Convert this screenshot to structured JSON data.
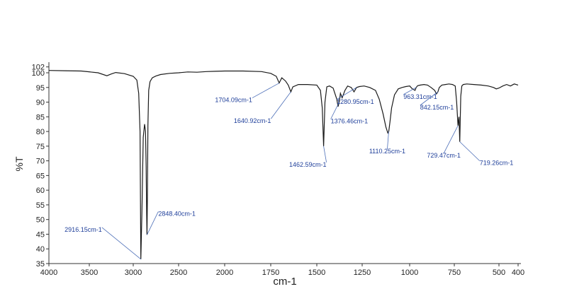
{
  "chart_data": {
    "type": "line",
    "title": "",
    "xlabel": "cm-1",
    "ylabel": "%T",
    "xlim": [
      4000,
      400
    ],
    "ylim": [
      35,
      102
    ],
    "x_ticks": [
      "4000",
      "3500",
      "3000",
      "2500",
      "2000",
      "1750",
      "1500",
      "1250",
      "1000",
      "750",
      "500",
      "400"
    ],
    "x_tick_values": [
      4000,
      3500,
      3000,
      2500,
      2000,
      1750,
      1500,
      1250,
      1000,
      750,
      500,
      400
    ],
    "y_ticks": [
      "35",
      "40",
      "45",
      "50",
      "55",
      "60",
      "65",
      "70",
      "75",
      "80",
      "85",
      "90",
      "95",
      "100",
      "102"
    ],
    "y_tick_values": [
      35,
      40,
      45,
      50,
      55,
      60,
      65,
      70,
      75,
      80,
      85,
      90,
      95,
      100,
      102
    ],
    "grid": false,
    "series": [
      {
        "x": [
          4000,
          3800,
          3600,
          3400,
          3300,
          3250,
          3200,
          3100,
          3000,
          2960,
          2940,
          2925,
          2916.15,
          2905,
          2890,
          2875,
          2865,
          2858,
          2852,
          2848.4,
          2844,
          2838,
          2830,
          2815,
          2790,
          2750,
          2700,
          2600,
          2500,
          2400,
          2300,
          2200,
          2100,
          2000,
          1900,
          1800,
          1750,
          1720,
          1704.09,
          1690,
          1670,
          1655,
          1640.92,
          1630,
          1600,
          1550,
          1500,
          1480,
          1470,
          1462.59,
          1455,
          1445,
          1430,
          1410,
          1390,
          1383,
          1376.46,
          1370,
          1360,
          1345,
          1330,
          1310,
          1295,
          1280.95,
          1265,
          1240,
          1210,
          1180,
          1160,
          1140,
          1125,
          1115,
          1110.25,
          1104,
          1095,
          1080,
          1060,
          1040,
          1020,
          1000,
          985,
          970,
          963.31,
          955,
          940,
          920,
          900,
          880,
          860,
          850,
          842.15,
          834,
          820,
          800,
          780,
          760,
          745,
          737,
          729.47,
          724,
          719.26,
          714,
          708,
          700,
          680,
          640,
          600,
          560,
          530,
          515,
          500,
          480,
          460,
          440,
          420,
          400
        ],
        "y": [
          100.8,
          100.7,
          100.6,
          100.0,
          99.0,
          99.6,
          100.1,
          99.7,
          98.8,
          97.5,
          93.0,
          80.0,
          36.5,
          52.0,
          78.0,
          82.5,
          80.0,
          68.0,
          52.0,
          44.8,
          58.0,
          82.0,
          94.0,
          97.0,
          98.3,
          98.9,
          99.4,
          99.8,
          100.0,
          100.3,
          100.2,
          100.4,
          100.5,
          100.6,
          100.6,
          100.4,
          99.8,
          98.8,
          96.5,
          98.3,
          97.2,
          95.8,
          93.5,
          95.2,
          96.0,
          96.0,
          95.8,
          94.0,
          88.0,
          75.0,
          90.0,
          95.2,
          95.5,
          94.8,
          91.0,
          88.5,
          90.0,
          93.0,
          91.5,
          94.0,
          95.5,
          95.0,
          93.5,
          95.0,
          95.3,
          95.5,
          95.0,
          94.0,
          91.0,
          86.0,
          81.5,
          79.5,
          80.0,
          83.0,
          88.0,
          92.5,
          94.5,
          95.0,
          95.3,
          95.5,
          94.5,
          94.0,
          95.0,
          95.6,
          95.8,
          96.0,
          95.8,
          95.0,
          94.0,
          92.8,
          93.5,
          95.0,
          95.8,
          96.0,
          96.2,
          96.0,
          95.5,
          90.0,
          82.0,
          85.0,
          76.5,
          92.0,
          95.5,
          96.0,
          96.2,
          96.0,
          95.8,
          95.5,
          95.0,
          94.5,
          94.8,
          95.5,
          96.0,
          95.5,
          96.2,
          95.8
        ]
      }
    ],
    "annotations": [
      {
        "text": "2916.15cm-1",
        "x": 2916.15,
        "y": 36.5
      },
      {
        "text": "2848.40cm-1",
        "x": 2848.4,
        "y": 44.8
      },
      {
        "text": "1704.09cm-1",
        "x": 1704.09,
        "y": 96.5
      },
      {
        "text": "1640.92cm-1",
        "x": 1640.92,
        "y": 93.5
      },
      {
        "text": "1462.59cm-1",
        "x": 1462.59,
        "y": 75.0
      },
      {
        "text": "1376.46cm-1",
        "x": 1376.46,
        "y": 90.0
      },
      {
        "text": "1280.95cm-1",
        "x": 1280.95,
        "y": 95.0
      },
      {
        "text": "1110.25cm-1",
        "x": 1110.25,
        "y": 80.0
      },
      {
        "text": "963.31cm-1",
        "x": 963.31,
        "y": 95.0
      },
      {
        "text": "842.15cm-1",
        "x": 842.15,
        "y": 93.5
      },
      {
        "text": "729.47cm-1",
        "x": 729.47,
        "y": 82.0
      },
      {
        "text": "719.26cm-1",
        "x": 719.26,
        "y": 76.5
      }
    ],
    "colors": {
      "line": "#1a1a1a",
      "annotation": "#1f3f9a",
      "leader": "#4d6fb8"
    }
  }
}
